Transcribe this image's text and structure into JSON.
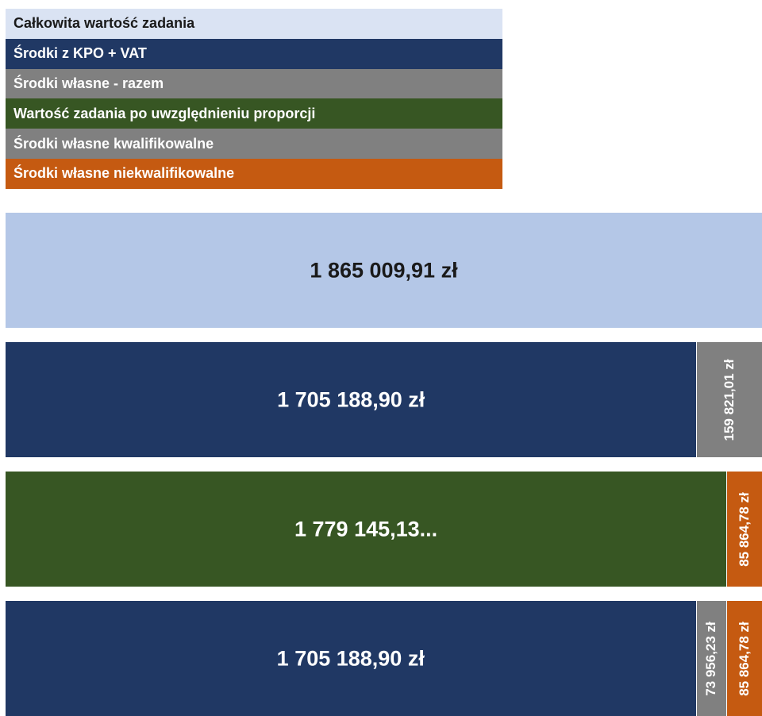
{
  "colors": {
    "total": "#b4c7e7",
    "kpo": "#203864",
    "own_total": "#808080",
    "proportion": "#375623",
    "own_eligible": "#808080",
    "own_ineligible": "#c55a11"
  },
  "legend": [
    {
      "label": "Całkowita wartość zadania",
      "color": "#dae3f3",
      "text_style": "light"
    },
    {
      "label": "Środki z KPO + VAT",
      "color": "#203864",
      "text_style": "white"
    },
    {
      "label": "Środki własne - razem",
      "color": "#808080",
      "text_style": "white"
    },
    {
      "label": "Wartość zadania po uwzględnieniu proporcji",
      "color": "#375623",
      "text_style": "white"
    },
    {
      "label": "Środki własne kwalifikowalne",
      "color": "#808080",
      "text_style": "white"
    },
    {
      "label": "Środki własne niekwalifikowalne",
      "color": "#c55a11",
      "text_style": "white"
    }
  ],
  "chart_data": {
    "type": "bar",
    "orientation": "horizontal-stacked",
    "bars": [
      {
        "segments": [
          {
            "value": 1865009.91,
            "label": "1 865 009,91 zł",
            "color": "#b4c7e7",
            "text_style": "dark",
            "label_orientation": "horizontal"
          }
        ]
      },
      {
        "segments": [
          {
            "value": 1705188.9,
            "label": "1 705 188,90 zł",
            "color": "#203864",
            "text_style": "white",
            "label_orientation": "horizontal"
          },
          {
            "value": 159821.01,
            "label": "159 821,01 zł",
            "color": "#808080",
            "text_style": "white",
            "label_orientation": "vertical"
          }
        ]
      },
      {
        "segments": [
          {
            "value": 1779145.13,
            "label": "1 779 145,13...",
            "color": "#375623",
            "text_style": "white",
            "label_orientation": "horizontal"
          },
          {
            "value": 85864.78,
            "label": "85 864,78 zł",
            "color": "#c55a11",
            "text_style": "white",
            "label_orientation": "vertical"
          }
        ]
      },
      {
        "segments": [
          {
            "value": 1705188.9,
            "label": "1 705 188,90 zł",
            "color": "#203864",
            "text_style": "white",
            "label_orientation": "horizontal"
          },
          {
            "value": 73956.23,
            "label": "73 956,23 zł",
            "color": "#808080",
            "text_style": "white",
            "label_orientation": "vertical"
          },
          {
            "value": 85864.78,
            "label": "85 864,78 zł",
            "color": "#c55a11",
            "text_style": "white",
            "label_orientation": "vertical"
          }
        ]
      }
    ]
  }
}
